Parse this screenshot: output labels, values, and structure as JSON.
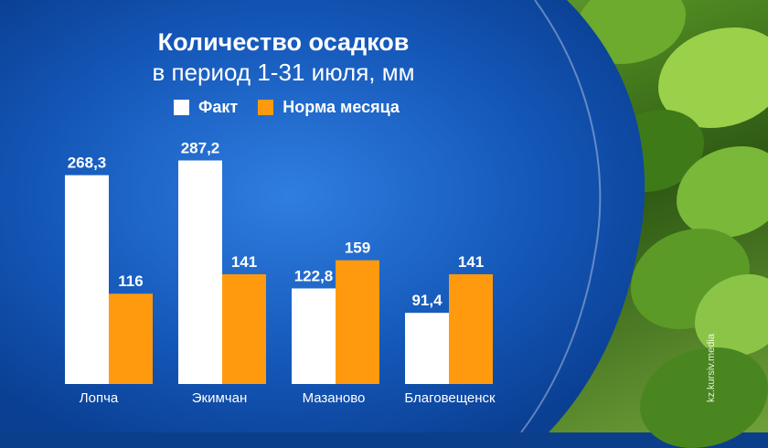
{
  "chart_data": {
    "type": "bar",
    "title": "Количество осадков",
    "subtitle": "в период 1-31 июля, мм",
    "categories": [
      "Лопча",
      "Экимчан",
      "Мазаново",
      "Благовещенск"
    ],
    "series": [
      {
        "name": "Факт",
        "values": [
          268.3,
          287.2,
          122.8,
          91.4
        ],
        "labels": [
          "268,3",
          "287,2",
          "122,8",
          "91,4"
        ],
        "color": "#ffffff"
      },
      {
        "name": "Норма месяца",
        "values": [
          116,
          141,
          159,
          141
        ],
        "labels": [
          "116",
          "141",
          "159",
          "141"
        ],
        "color": "#ff9a0e"
      }
    ],
    "ylim": [
      0,
      300
    ],
    "grid": false,
    "legend": "top"
  },
  "watermark": "kz.kursiv.media",
  "colors": {
    "background": "#1457b8",
    "accent": "#ff9a0e"
  }
}
